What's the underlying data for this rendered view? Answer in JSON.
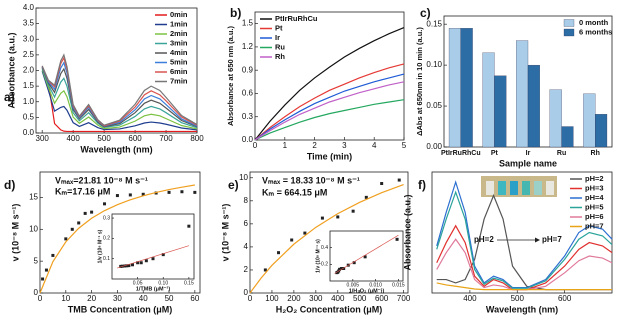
{
  "chart_data": [
    {
      "type": "line",
      "panel": "a)",
      "xlabel": "Wavelength (nm)",
      "ylabel": "Absorbance (a.u.)",
      "x": [
        300,
        320,
        340,
        360,
        370,
        380,
        400,
        420,
        450,
        480,
        500,
        550,
        600,
        630,
        652,
        680,
        700,
        750,
        800
      ],
      "xlim": [
        280,
        800
      ],
      "xticks": [
        300,
        400,
        500,
        600,
        700,
        800
      ],
      "ylim": [
        0,
        4
      ],
      "yticks": [
        {
          "value": 0,
          "label": "0.0"
        },
        {
          "value": 0.5,
          "label": "0.5"
        },
        {
          "value": 1,
          "label": "1.0"
        },
        {
          "value": 1.5,
          "label": "1.5"
        },
        {
          "value": 2,
          "label": "2.0"
        },
        {
          "value": 2.5,
          "label": "2.5"
        },
        {
          "value": 3,
          "label": "3.0"
        },
        {
          "value": 3.5,
          "label": "3.5"
        },
        {
          "value": 4,
          "label": "4.0"
        }
      ],
      "legend": "upper right",
      "series": [
        {
          "name": "0min",
          "color": "#e41a1c",
          "values": [
            2.1,
            1.6,
            0.3,
            0.1,
            0.06,
            0.05,
            0.05,
            0.05,
            0.05,
            0.05,
            0.05,
            0.05,
            0.05,
            0.05,
            0.05,
            0.05,
            0.05,
            0.05,
            0.05
          ]
        },
        {
          "name": "1min",
          "color": "#1f3d8f",
          "values": [
            1.98,
            1.36,
            0.7,
            0.82,
            0.85,
            0.73,
            0.33,
            0.21,
            0.33,
            0.17,
            0.11,
            0.13,
            0.23,
            0.32,
            0.35,
            0.32,
            0.28,
            0.16,
            0.1
          ]
        },
        {
          "name": "2min",
          "color": "#7cc242",
          "values": [
            2.03,
            1.46,
            0.95,
            1.27,
            1.35,
            1.16,
            0.51,
            0.31,
            0.51,
            0.25,
            0.14,
            0.19,
            0.38,
            0.55,
            0.6,
            0.55,
            0.46,
            0.24,
            0.13
          ]
        },
        {
          "name": "3min",
          "color": "#3aa49b",
          "values": [
            2.07,
            1.54,
            1.15,
            1.63,
            1.75,
            1.5,
            0.65,
            0.39,
            0.65,
            0.31,
            0.18,
            0.25,
            0.53,
            0.77,
            0.85,
            0.77,
            0.65,
            0.33,
            0.17
          ]
        },
        {
          "name": "4min",
          "color": "#555555",
          "values": [
            2.1,
            1.6,
            1.3,
            1.9,
            2.05,
            1.75,
            0.75,
            0.45,
            0.75,
            0.35,
            0.2,
            0.3,
            0.65,
            0.95,
            1.05,
            0.95,
            0.8,
            0.4,
            0.2
          ]
        },
        {
          "name": "5min",
          "color": "#3b7dd8",
          "values": [
            2.12,
            1.64,
            1.4,
            2.08,
            2.25,
            1.92,
            0.82,
            0.49,
            0.82,
            0.38,
            0.22,
            0.34,
            0.74,
            1.09,
            1.2,
            1.09,
            0.91,
            0.45,
            0.22
          ]
        },
        {
          "name": "6min",
          "color": "#d9534f",
          "values": [
            2.14,
            1.67,
            1.48,
            2.22,
            2.4,
            2.05,
            0.87,
            0.52,
            0.87,
            0.4,
            0.23,
            0.38,
            0.83,
            1.22,
            1.35,
            1.22,
            1.03,
            0.51,
            0.25
          ]
        },
        {
          "name": "7min",
          "color": "#777777",
          "values": [
            2.15,
            1.69,
            1.53,
            2.31,
            2.5,
            2.13,
            0.91,
            0.54,
            0.91,
            0.42,
            0.25,
            0.41,
            0.92,
            1.36,
            1.5,
            1.36,
            1.14,
            0.56,
            0.27
          ]
        }
      ]
    },
    {
      "type": "line",
      "panel": "b)",
      "xlabel": "Time (min)",
      "ylabel": "Absorbance at 650 nm (a.u.)",
      "x": [
        0,
        0.5,
        1,
        1.5,
        2,
        2.5,
        3,
        3.5,
        4,
        4.5,
        5
      ],
      "xlim": [
        0,
        5
      ],
      "xticks": [
        0,
        1,
        2,
        3,
        4,
        5
      ],
      "ylim": [
        0,
        1.65
      ],
      "yticks": [
        {
          "value": 0,
          "label": "0.0"
        },
        {
          "value": 0.3,
          "label": "0.3"
        },
        {
          "value": 0.6,
          "label": "0.6"
        },
        {
          "value": 0.9,
          "label": "0.9"
        },
        {
          "value": 1.2,
          "label": "1.2"
        },
        {
          "value": 1.5,
          "label": "1.5"
        }
      ],
      "legend": "upper left",
      "series": [
        {
          "name": "PtIrRuRhCu",
          "color": "#111111",
          "values": [
            0,
            0.24,
            0.45,
            0.64,
            0.8,
            0.94,
            1.07,
            1.18,
            1.28,
            1.37,
            1.45
          ]
        },
        {
          "name": "Pt",
          "color": "#e53935",
          "values": [
            0,
            0.16,
            0.3,
            0.43,
            0.54,
            0.64,
            0.72,
            0.8,
            0.87,
            0.93,
            0.98
          ]
        },
        {
          "name": "Ir",
          "color": "#1e5bd6",
          "values": [
            0,
            0.14,
            0.26,
            0.37,
            0.47,
            0.55,
            0.63,
            0.69,
            0.75,
            0.8,
            0.85
          ]
        },
        {
          "name": "Ru",
          "color": "#24a85f",
          "values": [
            0,
            0.09,
            0.16,
            0.23,
            0.29,
            0.34,
            0.38,
            0.42,
            0.46,
            0.49,
            0.52
          ]
        },
        {
          "name": "Rh",
          "color": "#c060c8",
          "values": [
            0,
            0.12,
            0.23,
            0.33,
            0.41,
            0.49,
            0.55,
            0.61,
            0.66,
            0.71,
            0.75
          ]
        }
      ]
    },
    {
      "type": "bar",
      "panel": "c)",
      "xlabel": "Sample name",
      "ylabel": "ΔAbs at 650nm in 10 min (a.u.)",
      "categories": [
        "PtIrRuRhCu",
        "Pt",
        "Ir",
        "Ru",
        "Rh"
      ],
      "ylim": [
        0,
        0.16
      ],
      "yticks": [
        {
          "value": 0,
          "label": "0.00"
        },
        {
          "value": 0.05,
          "label": "0.05"
        },
        {
          "value": 0.1,
          "label": "0.10"
        },
        {
          "value": 0.15,
          "label": "0.15"
        }
      ],
      "legend": "upper right",
      "series": [
        {
          "name": "0 month",
          "color": "#a9cde8",
          "values": [
            0.145,
            0.115,
            0.13,
            0.07,
            0.065
          ]
        },
        {
          "name": "6 months",
          "color": "#2c6da6",
          "values": [
            0.145,
            0.087,
            0.1,
            0.025,
            0.04
          ]
        }
      ]
    },
    {
      "type": "scatter",
      "panel": "d)",
      "xlabel": "TMB Concentration (μM)",
      "ylabel": "v (10⁻⁸ M s⁻¹)",
      "xlim": [
        0,
        62
      ],
      "xticks": [
        0,
        10,
        20,
        30,
        40,
        50,
        60
      ],
      "ylim": [
        0,
        19
      ],
      "yticks": [
        0,
        5,
        10,
        15
      ],
      "annotations": [
        "Vₘₐₓ=21.81 10⁻⁸ M s⁻¹",
        "Kₘ=17.16 μM"
      ],
      "series": [
        {
          "style": "points",
          "color": "#222222",
          "x": [
            1,
            2.5,
            5,
            10,
            12.5,
            15,
            17.5,
            20,
            25,
            30,
            35,
            40,
            45,
            50,
            55,
            60
          ],
          "values": [
            2.2,
            3.6,
            5.9,
            8.5,
            10,
            11,
            12.5,
            12.7,
            14,
            15.3,
            15.4,
            15.5,
            15.7,
            15.8,
            15.9,
            15.8
          ]
        },
        {
          "style": "line",
          "color": "#f0a020",
          "x": [
            0,
            5,
            10,
            15,
            20,
            25,
            30,
            35,
            40,
            45,
            50,
            55,
            60
          ],
          "values": [
            0,
            4.92,
            8.03,
            10.17,
            11.74,
            12.93,
            13.87,
            14.64,
            15.26,
            15.79,
            16.24,
            16.62,
            16.96
          ]
        }
      ],
      "inset": {
        "type": "scatter",
        "xlabel": "1/TMB (μM⁻¹)",
        "ylabel": "1/v (10⁸ M⁻¹ s)",
        "xlim": [
          0,
          0.16
        ],
        "xticks": [
          0.05,
          {
            "value": 0.1,
            "label": "0.10"
          },
          0.15
        ],
        "ylim": [
          0,
          0.32
        ],
        "yticks": [
          0.1,
          0.2,
          0.3
        ],
        "series": [
          {
            "style": "points",
            "color": "#222222",
            "x": [
              0.017,
              0.02,
              0.025,
              0.029,
              0.033,
              0.04,
              0.05,
              0.057,
              0.067,
              0.08,
              0.1,
              0.15
            ],
            "values": [
              0.062,
              0.063,
              0.064,
              0.065,
              0.066,
              0.07,
              0.08,
              0.08,
              0.09,
              0.1,
              0.12,
              0.26
            ]
          },
          {
            "style": "line",
            "color": "#d9534f",
            "x": [
              0.01,
              0.15
            ],
            "values": [
              0.054,
              0.164
            ]
          }
        ]
      }
    },
    {
      "type": "scatter",
      "panel": "e)",
      "xlabel": "H₂O₂ Concentration (μM)",
      "ylabel": "v (10⁻⁸ M s⁻¹)",
      "xlim": [
        0,
        720
      ],
      "xticks": [
        0,
        100,
        200,
        300,
        400,
        500,
        600,
        700
      ],
      "ylim": [
        0,
        10.5
      ],
      "yticks": [
        0,
        2,
        4,
        6,
        8,
        10
      ],
      "annotations": [
        "Vₘₐₓ = 18.33 10⁻⁸ M s⁻¹",
        "Kₘ = 664.15 μM"
      ],
      "series": [
        {
          "style": "points",
          "color": "#222222",
          "x": [
            70,
            130,
            190,
            250,
            330,
            400,
            470,
            530,
            600,
            680
          ],
          "values": [
            2,
            3.5,
            4.6,
            5.2,
            6.5,
            6.6,
            7.1,
            8.3,
            9.5,
            9.8
          ]
        },
        {
          "style": "line",
          "color": "#f0a020",
          "x": [
            0,
            50,
            100,
            200,
            300,
            400,
            500,
            600,
            700
          ],
          "values": [
            0,
            1.28,
            2.4,
            4.24,
            5.7,
            6.89,
            7.87,
            8.7,
            9.41
          ]
        }
      ],
      "inset": {
        "type": "scatter",
        "xlabel": "1/H₂O₂ (μM⁻¹)",
        "ylabel": "1/v (10⁸ M⁻¹ s)",
        "xlim": [
          0,
          0.016
        ],
        "xticks": [
          0.005,
          {
            "value": 0.01,
            "label": "0.010"
          },
          0.015
        ],
        "ylim": [
          0,
          0.6
        ],
        "yticks": [
          0.2,
          0.4
        ],
        "series": [
          {
            "style": "points",
            "color": "#222222",
            "x": [
              0.0147,
              0.0077,
              0.0053,
              0.004,
              0.003,
              0.0025,
              0.0021,
              0.0019,
              0.0017,
              0.0015
            ],
            "values": [
              0.5,
              0.29,
              0.22,
              0.19,
              0.15,
              0.15,
              0.14,
              0.12,
              0.105,
              0.1
            ]
          },
          {
            "style": "line",
            "color": "#d9534f",
            "x": [
              0.001,
              0.015
            ],
            "values": [
              0.09,
              0.55
            ]
          }
        ]
      }
    },
    {
      "type": "line",
      "panel": "f)",
      "xlabel": "Wavelength (nm)",
      "ylabel": "Absorbance (a.u.)",
      "x": [
        330,
        350,
        370,
        390,
        410,
        430,
        450,
        470,
        490,
        520,
        560,
        600,
        630,
        652,
        680,
        700
      ],
      "xlim": [
        320,
        700
      ],
      "xticks": [
        400,
        500,
        600
      ],
      "ylim": [
        0,
        1.8
      ],
      "legend": "upper right",
      "annotations": [
        "pH=2",
        "pH=7"
      ],
      "series": [
        {
          "name": "pH=2",
          "color": "#555555",
          "values": [
            0.2,
            0.2,
            0.15,
            0.2,
            0.5,
            1.1,
            1.45,
            1.1,
            0.4,
            0.1,
            0.05,
            0.05,
            0.05,
            0.05,
            0.05,
            0.05
          ]
        },
        {
          "name": "pH=3",
          "color": "#e0312f",
          "values": [
            0.45,
            0.75,
            1,
            0.75,
            0.25,
            0.1,
            0.2,
            0.15,
            0.05,
            0.05,
            0.15,
            0.4,
            0.65,
            0.75,
            0.7,
            0.6
          ]
        },
        {
          "name": "pH=4",
          "color": "#2c6fd1",
          "values": [
            0.7,
            1.2,
            1.65,
            1.2,
            0.4,
            0.15,
            0.25,
            0.2,
            0.08,
            0.08,
            0.2,
            0.55,
            0.9,
            1,
            0.95,
            0.8
          ]
        },
        {
          "name": "pH=5",
          "color": "#2aa39a",
          "values": [
            0.65,
            1.1,
            1.5,
            1.1,
            0.35,
            0.13,
            0.22,
            0.18,
            0.07,
            0.07,
            0.18,
            0.5,
            0.8,
            0.9,
            0.85,
            0.72
          ]
        },
        {
          "name": "pH=6",
          "color": "#e07a9a",
          "values": [
            0.35,
            0.6,
            0.8,
            0.6,
            0.2,
            0.08,
            0.12,
            0.1,
            0.05,
            0.05,
            0.1,
            0.3,
            0.48,
            0.55,
            0.52,
            0.45
          ]
        },
        {
          "name": "pH=7",
          "color": "#e8a317",
          "values": [
            0.15,
            0.12,
            0.1,
            0.08,
            0.06,
            0.05,
            0.05,
            0.05,
            0.05,
            0.05,
            0.05,
            0.05,
            0.05,
            0.05,
            0.05,
            0.05
          ]
        }
      ]
    }
  ]
}
